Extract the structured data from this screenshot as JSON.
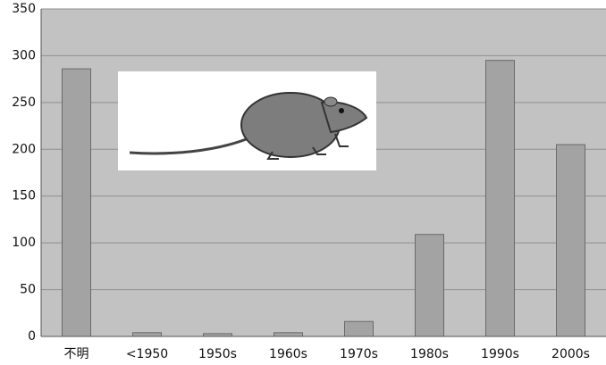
{
  "chart_data": {
    "type": "bar",
    "categories": [
      "不明",
      "<1950",
      "1950s",
      "1960s",
      "1970s",
      "1980s",
      "1990s",
      "2000s"
    ],
    "values": [
      286,
      4,
      3,
      4,
      16,
      109,
      295,
      205
    ],
    "color": "#a3a3a3",
    "ylim": [
      0,
      350
    ],
    "yticks": [
      0,
      50,
      100,
      150,
      200,
      250,
      300,
      350
    ],
    "grid": true
  }
}
